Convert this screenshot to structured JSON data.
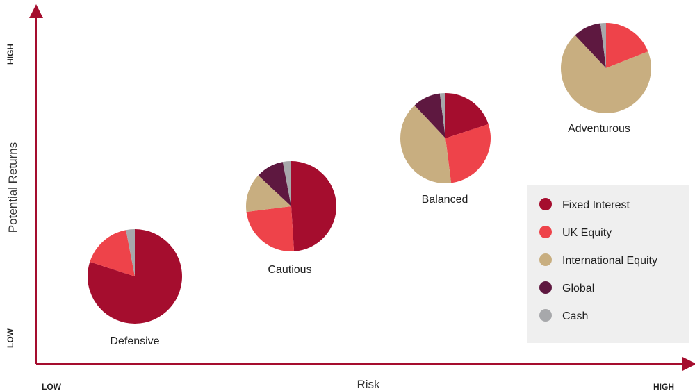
{
  "chart_data": {
    "type": "pie",
    "xlabel": "Risk",
    "ylabel": "Potential Returns",
    "x_axis_ends": {
      "low": "LOW",
      "high": "HIGH"
    },
    "y_axis_ends": {
      "low": "LOW",
      "high": "HIGH"
    },
    "categories": [
      "Fixed Interest",
      "UK Equity",
      "International Equity",
      "Global",
      "Cash"
    ],
    "colors": {
      "Fixed Interest": "#a50d2e",
      "UK Equity": "#ee434a",
      "International Equity": "#c8ae80",
      "Global": "#5e1840",
      "Cash": "#a7a8ab"
    },
    "legend_position": "bottom-right",
    "portfolios": [
      {
        "name": "Defensive",
        "values": [
          80,
          17,
          0,
          0,
          3
        ]
      },
      {
        "name": "Cautious",
        "values": [
          49,
          24,
          14,
          10,
          3
        ]
      },
      {
        "name": "Balanced",
        "values": [
          20,
          28,
          40,
          10,
          2
        ]
      },
      {
        "name": "Adventurous",
        "values": [
          0,
          19,
          69,
          10,
          2
        ]
      }
    ]
  }
}
